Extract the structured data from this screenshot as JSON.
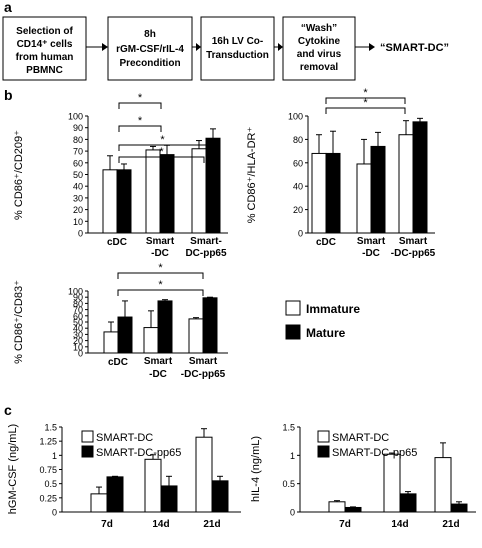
{
  "panels": {
    "a": "a",
    "b": "b",
    "c": "c"
  },
  "flow": {
    "steps": [
      [
        "Selection of",
        "CD14⁺ cells",
        "from human",
        "PBMNC"
      ],
      [
        "8h",
        "rGM-CSF/rIL-4",
        "Precondition"
      ],
      [
        "16h LV Co-",
        "Transduction"
      ],
      [
        "“Wash”",
        "Cytokine",
        "and virus",
        "removal"
      ]
    ],
    "final": "“SMART-DC”"
  },
  "legend_b": {
    "immature": "Immature",
    "mature": "Mature"
  },
  "colors": {
    "open": "#ffffff",
    "filled": "#000000",
    "stroke": "#000000"
  },
  "chart_data": [
    {
      "type": "bar",
      "ylabel": "% CD86⁺/CD209⁺",
      "ylim": [
        0,
        100
      ],
      "yticks": [
        0,
        10,
        20,
        30,
        40,
        50,
        60,
        70,
        80,
        90,
        100
      ],
      "categories": [
        [
          "cDC"
        ],
        [
          "Smart",
          "-DC"
        ],
        [
          "Smart-",
          "DC-pp65"
        ]
      ],
      "series": [
        {
          "name": "Immature",
          "values": [
            54,
            71,
            72
          ],
          "errors": [
            12,
            3,
            7
          ]
        },
        {
          "name": "Mature",
          "values": [
            54,
            67,
            81
          ],
          "errors": [
            5,
            8,
            8
          ]
        }
      ],
      "significance": [
        "*",
        "*",
        "*",
        "*"
      ]
    },
    {
      "type": "bar",
      "ylabel": "% CD86⁺/HLA-DR⁺",
      "ylim": [
        0,
        100
      ],
      "yticks": [
        0,
        20,
        40,
        60,
        80,
        100
      ],
      "categories": [
        [
          "cDC"
        ],
        [
          "Smart",
          "-DC"
        ],
        [
          "Smart",
          "-DC-pp65"
        ]
      ],
      "series": [
        {
          "name": "Immature",
          "values": [
            68,
            59,
            84
          ],
          "errors": [
            16,
            21,
            12
          ]
        },
        {
          "name": "Mature",
          "values": [
            68,
            74,
            95
          ],
          "errors": [
            19,
            12,
            3
          ]
        }
      ],
      "significance": [
        "*",
        "*"
      ]
    },
    {
      "type": "bar",
      "ylabel": "% CD86⁺/CD83⁺",
      "ylim": [
        0,
        100
      ],
      "yticks": [
        0,
        10,
        20,
        30,
        40,
        50,
        60,
        70,
        80,
        90,
        100
      ],
      "categories": [
        [
          "cDC"
        ],
        [
          "Smart",
          "-DC"
        ],
        [
          "Smart",
          "-DC-pp65"
        ]
      ],
      "series": [
        {
          "name": "Immature",
          "values": [
            34,
            41,
            55
          ],
          "errors": [
            16,
            27,
            2
          ]
        },
        {
          "name": "Mature",
          "values": [
            58,
            84,
            89
          ],
          "errors": [
            26,
            2,
            1
          ]
        }
      ],
      "significance": [
        "*",
        "*"
      ]
    },
    {
      "type": "bar",
      "ylabel": "hGM-CSF (ng/mL)",
      "ylim": [
        0,
        1.5
      ],
      "yticks": [
        "0",
        "0.25",
        "0.5",
        "0.75",
        "1",
        "1.25",
        "1.5"
      ],
      "categories": [
        [
          "7d"
        ],
        [
          "14d"
        ],
        [
          "21d"
        ]
      ],
      "series": [
        {
          "name": "SMART-DC",
          "values": [
            0.32,
            0.93,
            1.32
          ],
          "errors": [
            0.12,
            0.08,
            0.15
          ]
        },
        {
          "name": "SMART-DC-pp65",
          "values": [
            0.62,
            0.46,
            0.55
          ],
          "errors": [
            0.01,
            0.17,
            0.08
          ]
        }
      ]
    },
    {
      "type": "bar",
      "ylabel": "hIL-4 (ng/mL)",
      "ylim": [
        0,
        1.5
      ],
      "yticks": [
        "0",
        "0.5",
        "1",
        "1.5"
      ],
      "categories": [
        [
          "7d"
        ],
        [
          "14d"
        ],
        [
          "21d"
        ]
      ],
      "series": [
        {
          "name": "SMART-DC",
          "values": [
            0.18,
            1.02,
            0.96
          ],
          "errors": [
            0.02,
            0.02,
            0.26
          ]
        },
        {
          "name": "SMART-DC-pp65",
          "values": [
            0.08,
            0.32,
            0.14
          ],
          "errors": [
            0.01,
            0.04,
            0.04
          ]
        }
      ]
    }
  ]
}
